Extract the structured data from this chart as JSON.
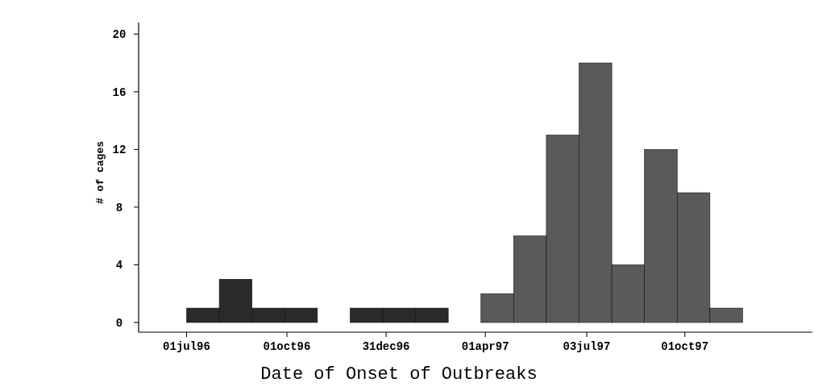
{
  "chart_data": {
    "type": "histogram",
    "xlabel": "Date of Onset of Outbreaks",
    "ylabel": "# of cages",
    "bins": [
      "1996-07-01",
      "1996-07-31",
      "1996-08-30",
      "1996-09-29",
      "1996-10-29",
      "1996-11-28",
      "1996-12-28",
      "1997-01-27",
      "1997-02-26",
      "1997-03-28",
      "1997-04-27",
      "1997-05-27",
      "1997-06-26",
      "1997-07-26",
      "1997-08-25",
      "1997-09-24",
      "1997-10-24",
      "1997-11-23"
    ],
    "values": [
      1,
      3,
      1,
      1,
      0,
      1,
      1,
      1,
      0,
      2,
      6,
      13,
      18,
      4,
      12,
      9,
      1
    ],
    "colors": [
      "#2a2a2a",
      "#2a2a2a",
      "#2a2a2a",
      "#2a2a2a",
      "#2a2a2a",
      "#2a2a2a",
      "#2a2a2a",
      "#2a2a2a",
      "#2a2a2a",
      "#5a5a5a",
      "#5a5a5a",
      "#5a5a5a",
      "#5a5a5a",
      "#5a5a5a",
      "#5a5a5a",
      "#5a5a5a",
      "#5a5a5a"
    ],
    "xlim": [
      "1996-05-18",
      "1998-01-26"
    ],
    "xticks": [
      {
        "value": "1996-07-01",
        "label": "01jul96"
      },
      {
        "value": "1996-10-01",
        "label": "01oct96"
      },
      {
        "value": "1996-12-31",
        "label": "31dec96"
      },
      {
        "value": "1997-04-01",
        "label": "01apr97"
      },
      {
        "value": "1997-07-03",
        "label": "03jul97"
      },
      {
        "value": "1997-10-01",
        "label": "01oct97"
      }
    ],
    "ylim": [
      0,
      20.8
    ],
    "yticks": [
      0,
      4,
      8,
      12,
      16,
      20
    ],
    "grid": false
  }
}
